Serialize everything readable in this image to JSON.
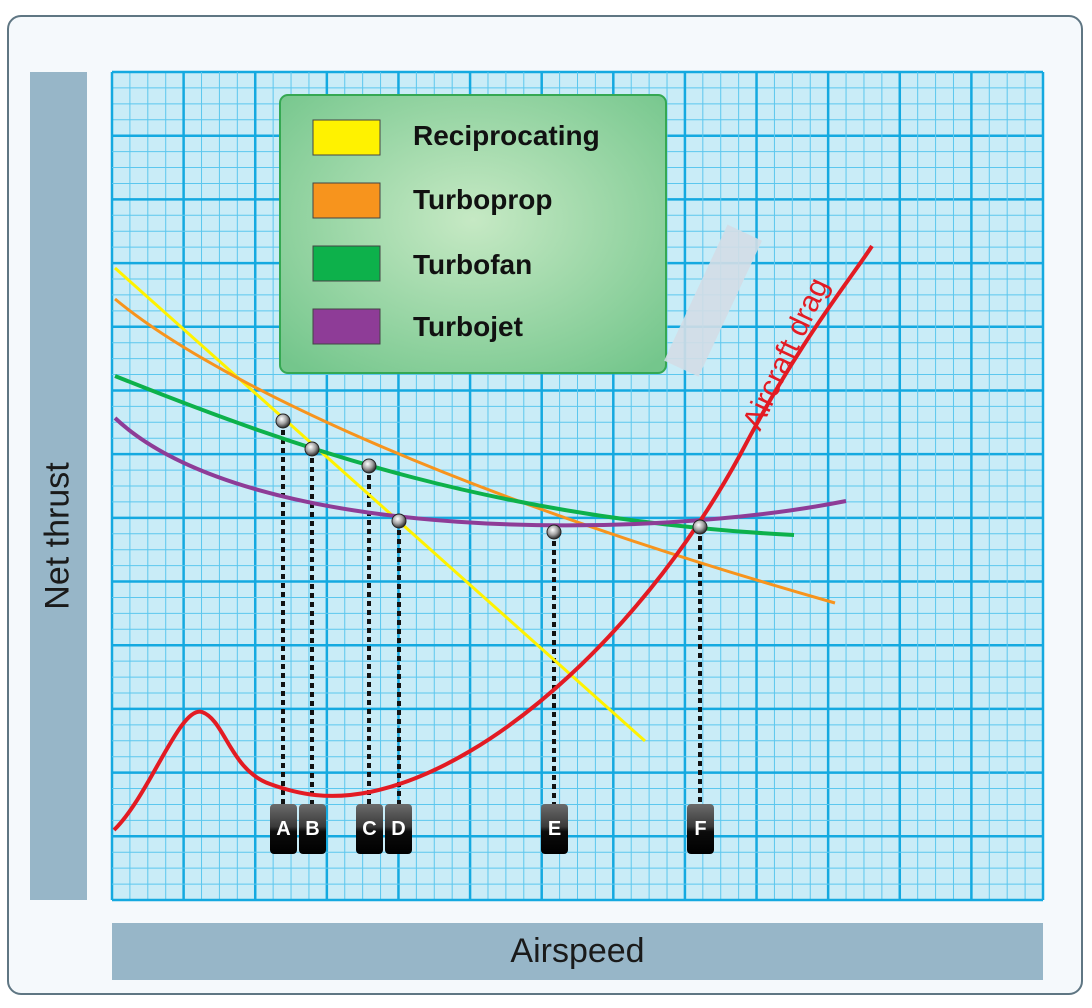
{
  "axes": {
    "y_label": "Net thrust",
    "x_label": "Airspeed"
  },
  "legend": [
    {
      "label": "Reciprocating",
      "color": "#fff200"
    },
    {
      "label": "Turboprop",
      "color": "#f7941d"
    },
    {
      "label": "Turbofan",
      "color": "#0db14b"
    },
    {
      "label": "Turbojet",
      "color": "#8e3c97"
    }
  ],
  "curves": {
    "drag": {
      "label": "Aircraft drag",
      "color": "#e31b23"
    },
    "reciprocating": {
      "color": "#fff200"
    },
    "turboprop": {
      "color": "#f7941d"
    },
    "turbofan": {
      "color": "#0db14b"
    },
    "turbojet": {
      "color": "#8e3c97"
    }
  },
  "markers": [
    "A",
    "B",
    "C",
    "D",
    "E",
    "F"
  ],
  "colors": {
    "grid_background": "#c9ecf7",
    "grid_major": "#14a9e0",
    "grid_minor": "#5cc7ee",
    "legend_box": "#8fd4a0",
    "band": "#97b6c8"
  }
}
